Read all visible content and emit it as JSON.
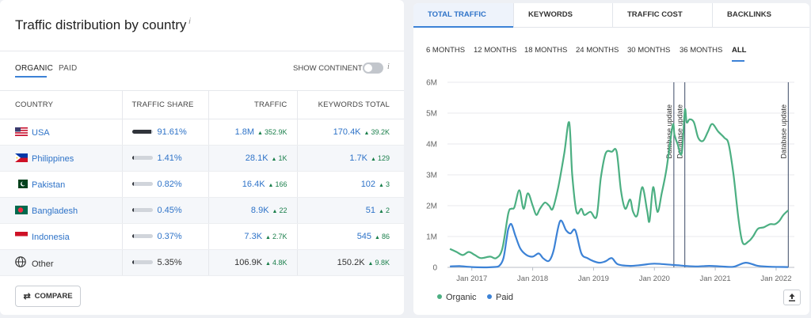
{
  "left_panel": {
    "title": "Traffic distribution by country",
    "title_info": "i",
    "tabs": [
      {
        "label": "ORGANIC",
        "active": true
      },
      {
        "label": "PAID",
        "active": false
      }
    ],
    "show_continents_label": "SHOW CONTINENTS",
    "show_continents_on": false,
    "show_continents_info": "i",
    "columns": [
      "COUNTRY",
      "TRAFFIC SHARE",
      "TRAFFIC",
      "KEYWORDS TOTAL"
    ],
    "rows": [
      {
        "country": "USA",
        "flag": "us-flag-icon",
        "share": "91.61%",
        "share_value": 0.9161,
        "traffic": "1.8M",
        "traffic_delta": "352.9K",
        "keywords": "170.4K",
        "keywords_delta": "39.2K"
      },
      {
        "country": "Philippines",
        "flag": "ph-flag-icon",
        "share": "1.41%",
        "share_value": 0.0141,
        "traffic": "28.1K",
        "traffic_delta": "1K",
        "keywords": "1.7K",
        "keywords_delta": "129"
      },
      {
        "country": "Pakistan",
        "flag": "pk-flag-icon",
        "share": "0.82%",
        "share_value": 0.0082,
        "traffic": "16.4K",
        "traffic_delta": "166",
        "keywords": "102",
        "keywords_delta": "3"
      },
      {
        "country": "Bangladesh",
        "flag": "bd-flag-icon",
        "share": "0.45%",
        "share_value": 0.0045,
        "traffic": "8.9K",
        "traffic_delta": "22",
        "keywords": "51",
        "keywords_delta": "2"
      },
      {
        "country": "Indonesia",
        "flag": "id-flag-icon",
        "share": "0.37%",
        "share_value": 0.0037,
        "traffic": "7.3K",
        "traffic_delta": "2.7K",
        "keywords": "545",
        "keywords_delta": "86"
      },
      {
        "country": "Other",
        "flag": "globe-icon",
        "share": "5.35%",
        "share_value": 0.0535,
        "traffic": "106.9K",
        "traffic_delta": "4.8K",
        "keywords": "150.2K",
        "keywords_delta": "9.8K"
      }
    ],
    "compare_label": "COMPARE",
    "compare_icon": "swap-arrows-icon"
  },
  "right_panel": {
    "metric_tabs": [
      {
        "label": "TOTAL TRAFFIC",
        "active": true
      },
      {
        "label": "KEYWORDS",
        "active": false
      },
      {
        "label": "TRAFFIC COST",
        "active": false
      },
      {
        "label": "BACKLINKS",
        "active": false
      }
    ],
    "ranges": [
      {
        "label": "6 MONTHS",
        "active": false
      },
      {
        "label": "12 MONTHS",
        "active": false
      },
      {
        "label": "18 MONTHS",
        "active": false
      },
      {
        "label": "24 MONTHS",
        "active": false
      },
      {
        "label": "30 MONTHS",
        "active": false
      },
      {
        "label": "36 MONTHS",
        "active": false
      },
      {
        "label": "ALL",
        "active": true
      }
    ],
    "legend": [
      {
        "label": "Organic",
        "color": "#4caf82"
      },
      {
        "label": "Paid",
        "color": "#3c82d6"
      }
    ],
    "export_icon": "export-upload-icon"
  },
  "chart_data": {
    "type": "line",
    "x_unit": "year",
    "x_ticks": [
      2017,
      2018,
      2019,
      2020,
      2021,
      2022
    ],
    "x_tick_labels": [
      "Jan 2017",
      "Jan 2018",
      "Jan 2019",
      "Jan 2020",
      "Jan 2021",
      "Jan 2022"
    ],
    "xlim": [
      2016.6,
      2022.3
    ],
    "ylim": [
      0,
      6000000
    ],
    "y_ticks": [
      0,
      1000000,
      2000000,
      3000000,
      4000000,
      5000000,
      6000000
    ],
    "y_tick_labels": [
      "0",
      "1M",
      "2M",
      "3M",
      "4M",
      "5M",
      "6M"
    ],
    "grid": true,
    "legend_position": "bottom-left",
    "annotations": [
      {
        "x": 2020.32,
        "label": "Database update"
      },
      {
        "x": 2020.5,
        "label": "Database update"
      },
      {
        "x": 2022.2,
        "label": "Database update"
      }
    ],
    "series": [
      {
        "name": "Organic",
        "color": "#4caf82",
        "x": [
          2016.64,
          2016.75,
          2016.85,
          2016.95,
          2017.05,
          2017.15,
          2017.3,
          2017.4,
          2017.5,
          2017.6,
          2017.65,
          2017.7,
          2017.78,
          2017.85,
          2017.92,
          2018.0,
          2018.06,
          2018.12,
          2018.2,
          2018.27,
          2018.33,
          2018.42,
          2018.52,
          2018.6,
          2018.65,
          2018.72,
          2018.8,
          2018.85,
          2018.95,
          2019.05,
          2019.12,
          2019.2,
          2019.3,
          2019.38,
          2019.45,
          2019.52,
          2019.6,
          2019.65,
          2019.72,
          2019.8,
          2019.88,
          2019.92,
          2019.98,
          2020.05,
          2020.12,
          2020.2,
          2020.3,
          2020.33,
          2020.38,
          2020.45,
          2020.5,
          2020.53,
          2020.58,
          2020.65,
          2020.72,
          2020.8,
          2020.88,
          2020.95,
          2021.05,
          2021.15,
          2021.22,
          2021.3,
          2021.38,
          2021.45,
          2021.55,
          2021.62,
          2021.7,
          2021.8,
          2021.9,
          2021.98,
          2022.05,
          2022.12,
          2022.2
        ],
        "values": [
          600000,
          500000,
          400000,
          500000,
          400000,
          300000,
          350000,
          300000,
          600000,
          1750000,
          1900000,
          1950000,
          2500000,
          1900000,
          2400000,
          2000000,
          1700000,
          1900000,
          2100000,
          2000000,
          1900000,
          2600000,
          3700000,
          4700000,
          3000000,
          1800000,
          1900000,
          1700000,
          1800000,
          1650000,
          2900000,
          3700000,
          3750000,
          3750000,
          2500000,
          1900000,
          2200000,
          1800000,
          1700000,
          2600000,
          1850000,
          1500000,
          2600000,
          1800000,
          2400000,
          3200000,
          4600000,
          4300000,
          4000000,
          3700000,
          5100000,
          4700000,
          4800000,
          4700000,
          4200000,
          4100000,
          4400000,
          4650000,
          4400000,
          4200000,
          4000000,
          3000000,
          1600000,
          800000,
          850000,
          1000000,
          1250000,
          1300000,
          1400000,
          1400000,
          1500000,
          1700000,
          1850000
        ]
      },
      {
        "name": "Paid",
        "color": "#3c82d6",
        "x": [
          2016.64,
          2016.8,
          2017.0,
          2017.2,
          2017.35,
          2017.45,
          2017.52,
          2017.57,
          2017.6,
          2017.65,
          2017.72,
          2017.8,
          2017.9,
          2018.0,
          2018.1,
          2018.17,
          2018.25,
          2018.3,
          2018.35,
          2018.45,
          2018.55,
          2018.62,
          2018.7,
          2018.8,
          2018.9,
          2019.0,
          2019.1,
          2019.2,
          2019.3,
          2019.4,
          2019.6,
          2019.8,
          2020.0,
          2020.3,
          2020.5,
          2020.7,
          2020.9,
          2021.1,
          2021.3,
          2021.5,
          2021.7,
          2021.9,
          2022.2
        ],
        "values": [
          30000,
          40000,
          10000,
          0,
          10000,
          50000,
          300000,
          900000,
          1250000,
          1400000,
          1000000,
          600000,
          400000,
          350000,
          450000,
          300000,
          200000,
          300000,
          600000,
          1500000,
          1200000,
          1100000,
          1200000,
          450000,
          300000,
          200000,
          150000,
          200000,
          300000,
          100000,
          50000,
          80000,
          120000,
          80000,
          50000,
          30000,
          50000,
          30000,
          20000,
          150000,
          50000,
          20000,
          10000
        ]
      }
    ]
  }
}
